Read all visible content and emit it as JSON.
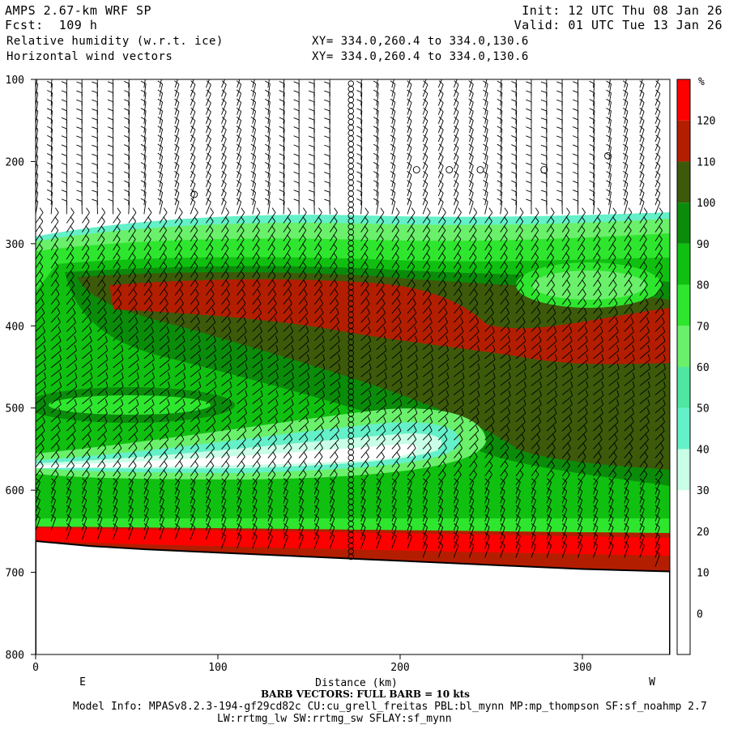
{
  "header": {
    "model": "AMPS 2.67-km WRF SP",
    "fcst": "Fcst:  109 h",
    "field1": "Relative humidity (w.r.t. ice)",
    "field2": "Horizontal wind vectors",
    "init": "Init: 12 UTC Thu 08 Jan 26",
    "valid": "Valid: 01 UTC Tue 13 Jan 26",
    "xy1": "XY= 334.0,260.4 to 334.0,130.6",
    "xy2": "XY= 334.0,260.4 to 334.0,130.6"
  },
  "footer": {
    "barb_note": "BARB VECTORS:  FULL BARB = 10 kts",
    "model_info": "Model Info: MPASv8.2.3-194-gf29cd82c CU:cu_grell_freitas PBL:bl_mynn MP:mp_thompson SF:sf_noahmp 2.7",
    "model_info2": "LW:rrtmg_lw SW:rrtmg_sw SFLAY:sf_mynn"
  },
  "chart_data": {
    "type": "heatmap",
    "title": "Relative humidity (w.r.t. ice)",
    "xlabel": "Distance (km)",
    "ylabel": "",
    "xlim": [
      0,
      348
    ],
    "ylim": [
      800,
      100
    ],
    "x_ticks": [
      0,
      100,
      200,
      300
    ],
    "y_ticks": [
      100,
      200,
      300,
      400,
      500,
      600,
      700,
      800
    ],
    "x_end_labels": {
      "left": "E",
      "right": "W"
    },
    "colorbar": {
      "unit": "%",
      "levels": [
        0,
        10,
        20,
        30,
        40,
        50,
        60,
        70,
        80,
        90,
        100,
        110,
        120
      ],
      "colors": [
        "#ffffff",
        "#ffffff",
        "#ffffff",
        "#c8ffe6",
        "#64f0c8",
        "#4ee6a0",
        "#6af06a",
        "#2ee62e",
        "#10c010",
        "#0a8c0a",
        "#3c5a0a",
        "#b41e00",
        "#ff0000"
      ]
    },
    "terrain_pressure": [
      {
        "x": 0,
        "p": 662
      },
      {
        "x": 30,
        "p": 668
      },
      {
        "x": 60,
        "p": 672
      },
      {
        "x": 100,
        "p": 676
      },
      {
        "x": 140,
        "p": 680
      },
      {
        "x": 180,
        "p": 684
      },
      {
        "x": 220,
        "p": 688
      },
      {
        "x": 260,
        "p": 692
      },
      {
        "x": 300,
        "p": 696
      },
      {
        "x": 348,
        "p": 699
      }
    ],
    "rh_layers": [
      {
        "name": "dry upper layer",
        "rh": 10,
        "p_top": 100,
        "p_bottom": 270
      },
      {
        "name": "moist layer",
        "rh": 85,
        "p_top": 280,
        "p_bottom": 650
      },
      {
        "name": "ice supersaturated band",
        "rh": 115,
        "p_top": 345,
        "p_bottom": 440
      },
      {
        "name": "dry tongue",
        "rh": 35,
        "p_top": 510,
        "p_bottom": 590
      },
      {
        "name": "near-surface saturated layer",
        "rh": 125,
        "p_top": 650,
        "p_bottom": 690
      }
    ],
    "calm_marker_columns_km": [
      173
    ],
    "grid": false,
    "legend": "right colorbar"
  }
}
